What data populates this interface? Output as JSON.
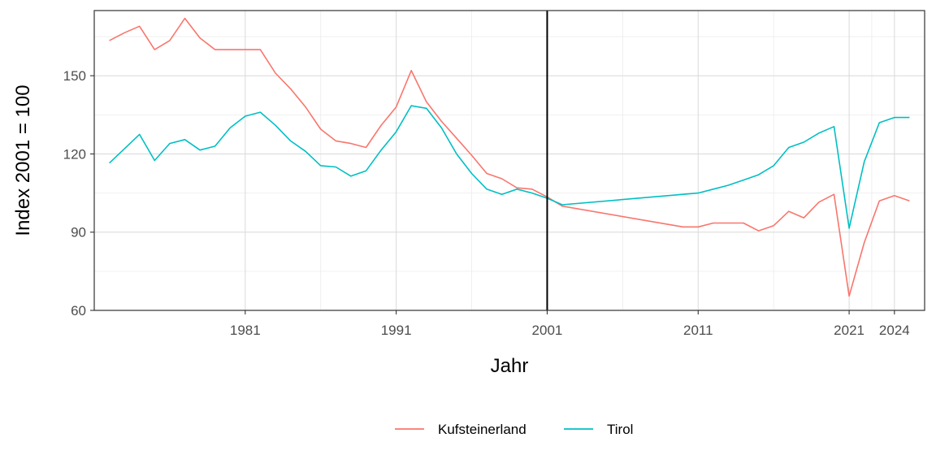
{
  "chart_data": {
    "type": "line",
    "title": "",
    "xlabel": "Jahr",
    "ylabel": "Index 2001 = 100",
    "xlim": [
      1971,
      2026
    ],
    "ylim": [
      60,
      175
    ],
    "x_ticks": [
      1981,
      1991,
      2001,
      2011,
      2021,
      2024
    ],
    "y_ticks": [
      60,
      90,
      120,
      150
    ],
    "y_minor_ticks": [
      75,
      105,
      135,
      165
    ],
    "reference_line_x": 2001,
    "grid": true,
    "legend_position": "bottom",
    "series": [
      {
        "name": "Kufsteinerland",
        "color": "#F8766D",
        "points": [
          [
            1972,
            163.5
          ],
          [
            1973,
            166.5
          ],
          [
            1974,
            169
          ],
          [
            1975,
            160
          ],
          [
            1976,
            163.5
          ],
          [
            1977,
            172
          ],
          [
            1978,
            164.5
          ],
          [
            1979,
            160
          ],
          [
            1980,
            160
          ],
          [
            1981,
            160
          ],
          [
            1982,
            160
          ],
          [
            1983,
            151
          ],
          [
            1984,
            145
          ],
          [
            1985,
            138
          ],
          [
            1986,
            129.5
          ],
          [
            1987,
            125
          ],
          [
            1988,
            124
          ],
          [
            1989,
            122.5
          ],
          [
            1990,
            131
          ],
          [
            1991,
            138
          ],
          [
            1992,
            152
          ],
          [
            1993,
            140
          ],
          [
            1994,
            132.5
          ],
          [
            1995,
            126
          ],
          [
            1996,
            119.5
          ],
          [
            1997,
            112.5
          ],
          [
            1998,
            110.5
          ],
          [
            1999,
            107
          ],
          [
            2000,
            106.5
          ],
          [
            2001,
            103.5
          ],
          [
            2002,
            100
          ],
          [
            2010,
            92
          ],
          [
            2011,
            92
          ],
          [
            2012,
            93.5
          ],
          [
            2013,
            93.5
          ],
          [
            2014,
            93.5
          ],
          [
            2015,
            90.5
          ],
          [
            2016,
            92.5
          ],
          [
            2017,
            98
          ],
          [
            2018,
            95.5
          ],
          [
            2019,
            101.5
          ],
          [
            2020,
            104.5
          ],
          [
            2021,
            65.5
          ],
          [
            2022,
            86
          ],
          [
            2023,
            102
          ],
          [
            2024,
            104
          ],
          [
            2025,
            102
          ]
        ]
      },
      {
        "name": "Tirol",
        "color": "#00BFC4",
        "points": [
          [
            1972,
            116.5
          ],
          [
            1973,
            122
          ],
          [
            1974,
            127.5
          ],
          [
            1975,
            117.5
          ],
          [
            1976,
            124
          ],
          [
            1977,
            125.5
          ],
          [
            1978,
            121.5
          ],
          [
            1979,
            123
          ],
          [
            1980,
            130
          ],
          [
            1981,
            134.5
          ],
          [
            1982,
            136
          ],
          [
            1983,
            131
          ],
          [
            1984,
            125
          ],
          [
            1985,
            121
          ],
          [
            1986,
            115.5
          ],
          [
            1987,
            115
          ],
          [
            1988,
            111.5
          ],
          [
            1989,
            113.5
          ],
          [
            1990,
            121.5
          ],
          [
            1991,
            128.5
          ],
          [
            1992,
            138.5
          ],
          [
            1993,
            137.5
          ],
          [
            1994,
            130
          ],
          [
            1995,
            120
          ],
          [
            1996,
            112.5
          ],
          [
            1997,
            106.5
          ],
          [
            1998,
            104.5
          ],
          [
            1999,
            106.5
          ],
          [
            2000,
            105
          ],
          [
            2001,
            103
          ],
          [
            2002,
            100.5
          ],
          [
            2011,
            105
          ],
          [
            2012,
            106.5
          ],
          [
            2013,
            108
          ],
          [
            2014,
            110
          ],
          [
            2015,
            112
          ],
          [
            2016,
            115.5
          ],
          [
            2017,
            122.5
          ],
          [
            2018,
            124.5
          ],
          [
            2019,
            128
          ],
          [
            2020,
            130.5
          ],
          [
            2021,
            91.5
          ],
          [
            2022,
            117
          ],
          [
            2023,
            132
          ],
          [
            2024,
            134
          ],
          [
            2025,
            134
          ]
        ]
      }
    ]
  }
}
